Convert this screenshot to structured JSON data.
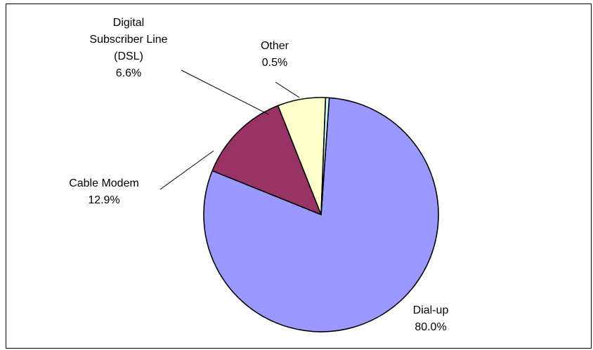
{
  "chart_data": {
    "type": "pie",
    "title": "",
    "start_angle_deg": 4,
    "direction": "clockwise",
    "slices": [
      {
        "label_lines": [
          "Dial-up"
        ],
        "value": 80.0,
        "value_text": "80.0%",
        "color": "#9999FF"
      },
      {
        "label_lines": [
          "Cable Modem"
        ],
        "value": 12.9,
        "value_text": "12.9%",
        "color": "#993366"
      },
      {
        "label_lines": [
          "Digital",
          "Subscriber Line",
          "(DSL)"
        ],
        "value": 6.6,
        "value_text": "6.6%",
        "color": "#FFFFCC"
      },
      {
        "label_lines": [
          "Other"
        ],
        "value": 0.5,
        "value_text": "0.5%",
        "color": "#CCFFFF"
      }
    ],
    "legend": "none",
    "data_labels": "category name and percentage, with leader lines"
  }
}
